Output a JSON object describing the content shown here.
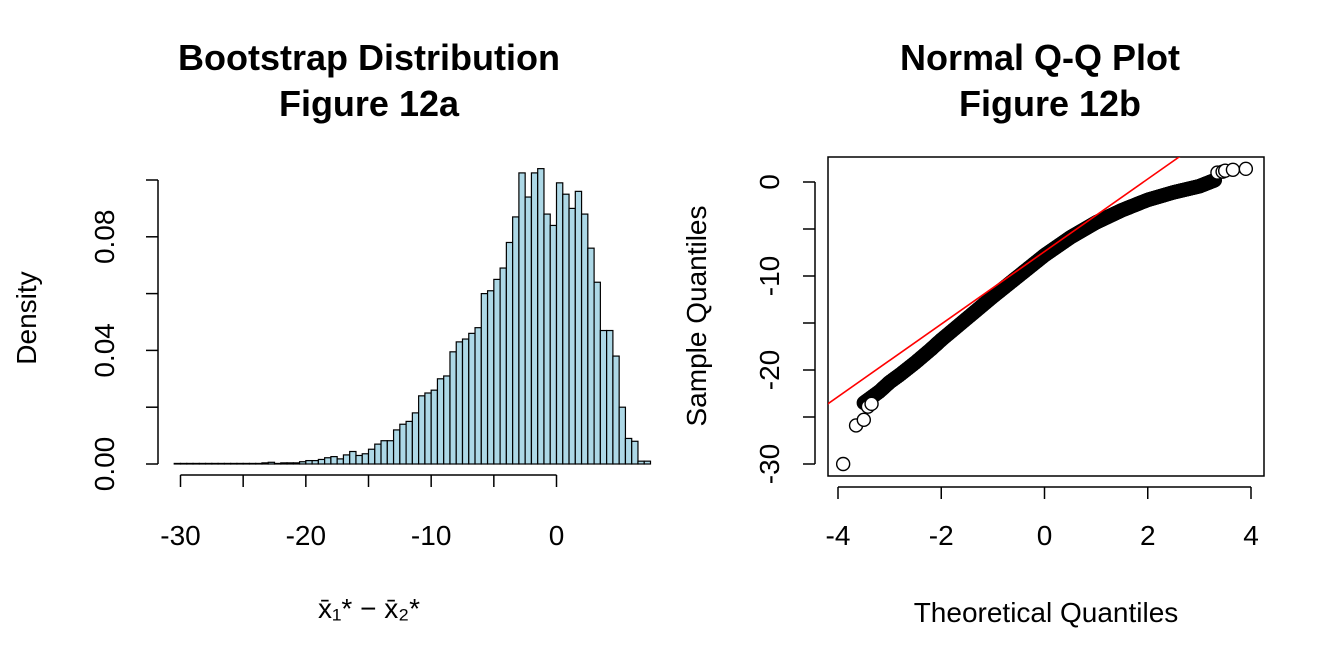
{
  "chart_data": [
    {
      "type": "histogram",
      "title": "Bootstrap Distribution",
      "subtitle": "Figure 12a",
      "xlabel": "x̄₁* − x̄₂*",
      "ylabel": "Density",
      "xlim": [
        -31,
        1.5
      ],
      "ylim": [
        0,
        0.1
      ],
      "xticks": [
        -30,
        -20,
        -10,
        0
      ],
      "xtick_labels": [
        "-30",
        "-20",
        "-10",
        "0"
      ],
      "yticks": [
        0.0,
        0.02,
        0.04,
        0.06,
        0.08,
        0.1
      ],
      "ytick_labels": [
        "0.00",
        "",
        "0.04",
        "",
        "0.08",
        ""
      ],
      "bar_color": "#ADD8E6",
      "bin_width": 0.5,
      "bin_start": -30.5,
      "values": [
        0.0002,
        0.0002,
        0.0002,
        0.0002,
        0.0002,
        0.0002,
        0.0002,
        0.0002,
        0.0002,
        0.0002,
        0.0002,
        0.0002,
        0.0002,
        0.0002,
        0.0004,
        0.0006,
        0.0002,
        0.0004,
        0.0004,
        0.0004,
        0.0008,
        0.0012,
        0.0012,
        0.0016,
        0.0022,
        0.0026,
        0.0018,
        0.0032,
        0.0044,
        0.003,
        0.0036,
        0.0052,
        0.007,
        0.0082,
        0.0082,
        0.012,
        0.014,
        0.015,
        0.018,
        0.024,
        0.025,
        0.026,
        0.03,
        0.031,
        0.0395,
        0.043,
        0.044,
        0.046,
        0.048,
        0.06,
        0.061,
        0.065,
        0.069,
        0.078,
        0.087,
        0.1025,
        0.094,
        0.1025,
        0.104,
        0.088,
        0.084,
        0.099,
        0.095,
        0.09,
        0.096,
        0.088,
        0.076,
        0.064,
        0.047,
        0.047,
        0.038,
        0.02,
        0.009,
        0.008,
        0.001,
        0.001
      ],
      "description_note": ""
    },
    {
      "type": "scatter",
      "title": "Normal Q-Q Plot",
      "subtitle": "Figure 12b",
      "xlabel": "Theoretical Quantiles",
      "ylabel": "Sample Quantiles",
      "xlim": [
        -4.2,
        4.2
      ],
      "ylim": [
        -31,
        2.6
      ],
      "xticks": [
        -4,
        -2,
        0,
        2,
        4
      ],
      "xtick_labels": [
        "-4",
        "-2",
        "0",
        "2",
        "4"
      ],
      "yticks": [
        -30,
        -25,
        -20,
        -15,
        -10,
        -5,
        0
      ],
      "ytick_labels": [
        "-30",
        "",
        "-20",
        "",
        "-10",
        "",
        "0"
      ],
      "reference_line": {
        "intercept": -7.4,
        "slope": 3.86,
        "color": "#FF0000"
      },
      "curve_points": [
        [
          -3.5,
          -23.5
        ],
        [
          -3.2,
          -22.3
        ],
        [
          -3.0,
          -21.3
        ],
        [
          -2.8,
          -20.5
        ],
        [
          -2.5,
          -19.2
        ],
        [
          -2.2,
          -17.8
        ],
        [
          -2.0,
          -16.8
        ],
        [
          -1.5,
          -14.5
        ],
        [
          -1.0,
          -12.2
        ],
        [
          -0.5,
          -10.0
        ],
        [
          0.0,
          -7.8
        ],
        [
          0.5,
          -5.9
        ],
        [
          1.0,
          -4.3
        ],
        [
          1.5,
          -3.0
        ],
        [
          2.0,
          -1.9
        ],
        [
          2.5,
          -1.1
        ],
        [
          3.0,
          -0.45
        ],
        [
          3.3,
          0.2
        ]
      ],
      "outlier_points": [
        [
          -3.9,
          -30.0
        ],
        [
          -3.65,
          -25.9
        ],
        [
          -3.5,
          -25.3
        ],
        [
          -3.42,
          -23.9
        ],
        [
          -3.35,
          -23.6
        ],
        [
          3.35,
          1.0
        ],
        [
          3.45,
          1.1
        ],
        [
          3.5,
          1.2
        ],
        [
          3.65,
          1.3
        ],
        [
          3.9,
          1.4
        ]
      ],
      "point_style": "open-circle"
    }
  ]
}
